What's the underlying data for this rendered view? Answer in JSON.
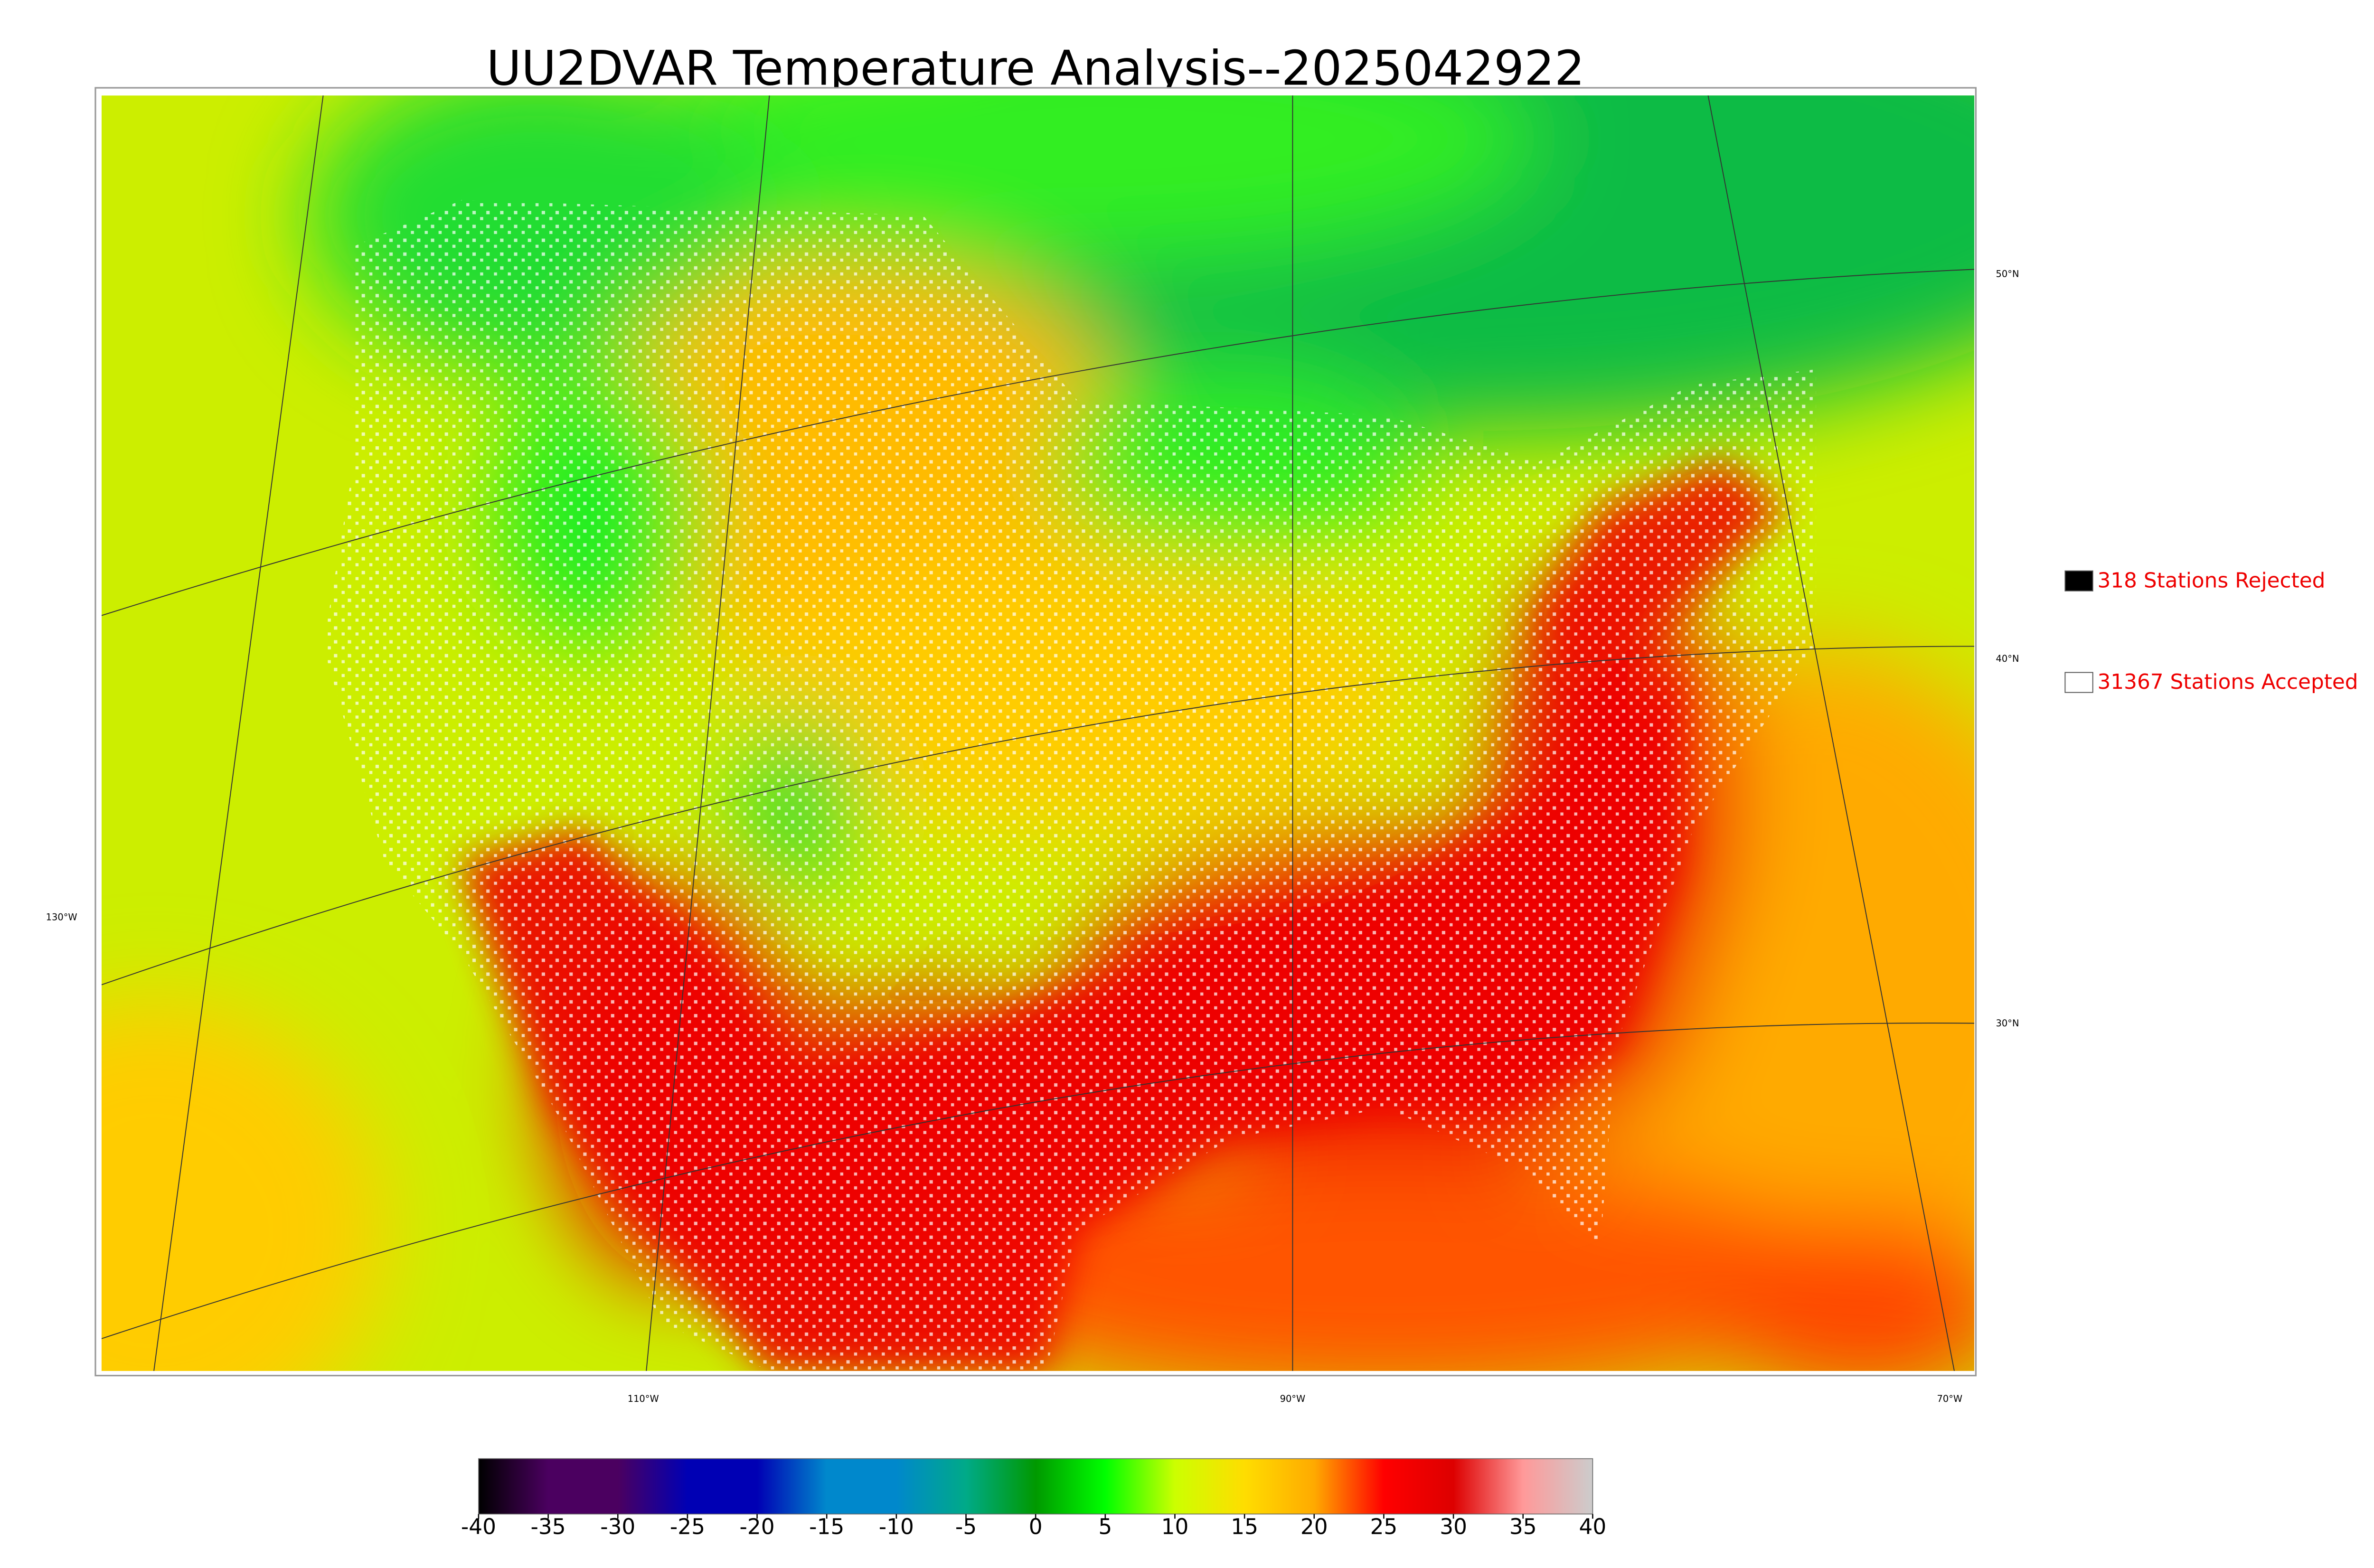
{
  "title": "UU2DVAR Temperature Analysis--2025042922",
  "legend": [
    {
      "label": "318 Stations Rejected",
      "color": "#000000"
    },
    {
      "label": "31367 Stations Accepted",
      "color": "#ffffff"
    }
  ],
  "graticule_labels": {
    "latitude": [
      "50°N",
      "40°N",
      "30°N"
    ],
    "longitude": [
      "130°W",
      "110°W",
      "90°W",
      "70°W"
    ]
  },
  "colorbar": {
    "ticks": [
      -40,
      -35,
      -30,
      -25,
      -20,
      -15,
      -10,
      -5,
      0,
      5,
      10,
      15,
      20,
      25,
      30,
      35,
      40
    ],
    "colors": [
      "#000000",
      "#4b0060",
      "#4b0060",
      "#0000b4",
      "#0000b4",
      "#0088cc",
      "#0088cc",
      "#00aa88",
      "#009900",
      "#00ff00",
      "#ccff00",
      "#ffdd00",
      "#ffaa00",
      "#ff0000",
      "#dd0000",
      "#ff9999",
      "#cccccc"
    ]
  }
}
